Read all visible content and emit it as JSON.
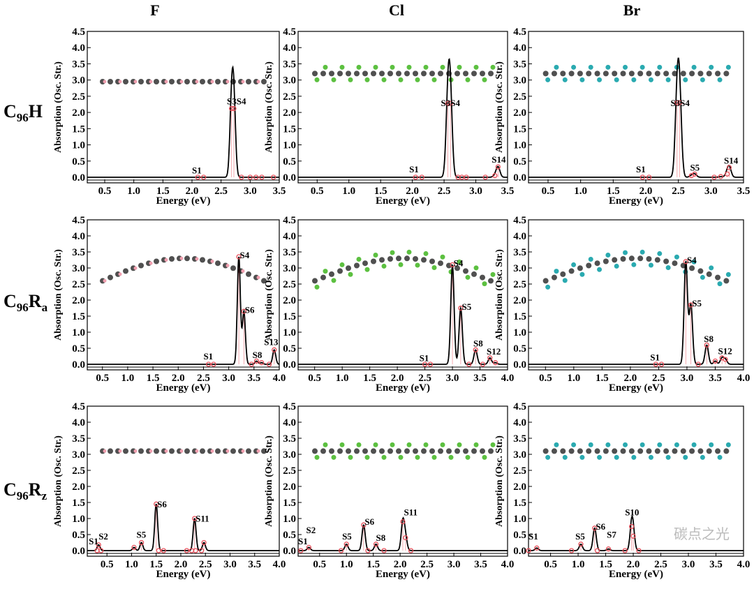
{
  "column_titles": [
    "F",
    "Cl",
    "Br"
  ],
  "row_labels": [
    [
      [
        "C",
        ""
      ],
      [
        "96",
        "sub"
      ],
      [
        "H",
        ""
      ]
    ],
    [
      [
        "C",
        ""
      ],
      [
        "96",
        "sub"
      ],
      [
        "R",
        ""
      ],
      [
        "a",
        "sub"
      ]
    ],
    [
      [
        "C",
        ""
      ],
      [
        "96",
        "sub"
      ],
      [
        "R",
        ""
      ],
      [
        "z",
        "sub"
      ]
    ]
  ],
  "colors": {
    "curve": "#000000",
    "stick": "#e8505b",
    "F": "#f0a0b0",
    "Cl": "#5cc040",
    "Br": "#2aaab0",
    "carbon": "#505050"
  },
  "watermark": "碳点之光",
  "chart_data": [
    {
      "type": "line",
      "xlabel": "Energy (eV)",
      "ylabel": "Absorption (Osc. Str.)",
      "xlim": [
        0.2,
        3.5
      ],
      "ylim": [
        0,
        4.5
      ],
      "xticks": [
        0.5,
        1.0,
        1.5,
        2.0,
        2.5,
        3.0,
        3.5
      ],
      "yticks": [
        0,
        0.5,
        1,
        1.5,
        2,
        2.5,
        3,
        3.5,
        4,
        4.5
      ],
      "molecule": "flat",
      "atom": "F",
      "sticks": [
        [
          2.1,
          0
        ],
        [
          2.2,
          0
        ],
        [
          2.68,
          2.12
        ],
        [
          2.72,
          2.12
        ],
        [
          2.85,
          0
        ],
        [
          3.0,
          0
        ],
        [
          3.1,
          0
        ],
        [
          3.2,
          0
        ],
        [
          3.4,
          0
        ]
      ],
      "labels": [
        {
          "text": "S1",
          "x": 2.0,
          "y": 0.12
        },
        {
          "text": "S3S4",
          "x": 2.6,
          "y": 2.25
        }
      ]
    },
    {
      "type": "line",
      "xlabel": "Energy (eV)",
      "ylabel": "Absorption (Osc. Str.)",
      "xlim": [
        0.2,
        3.5
      ],
      "ylim": [
        0,
        4.5
      ],
      "xticks": [
        0.5,
        1.0,
        1.5,
        2.0,
        2.5,
        3.0,
        3.5
      ],
      "yticks": [
        0,
        0.5,
        1,
        1.5,
        2,
        2.5,
        3,
        3.5,
        4,
        4.5
      ],
      "molecule": "flat",
      "atom": "Cl",
      "sticks": [
        [
          2.05,
          0
        ],
        [
          2.15,
          0
        ],
        [
          2.56,
          2.28
        ],
        [
          2.6,
          2.28
        ],
        [
          2.72,
          0
        ],
        [
          2.78,
          0
        ],
        [
          2.85,
          0
        ],
        [
          3.15,
          0
        ],
        [
          3.3,
          0.05
        ],
        [
          3.35,
          0.32
        ]
      ],
      "labels": [
        {
          "text": "S1",
          "x": 1.95,
          "y": 0.15
        },
        {
          "text": "S3S4",
          "x": 2.45,
          "y": 2.2
        },
        {
          "text": "S14",
          "x": 3.25,
          "y": 0.45
        }
      ]
    },
    {
      "type": "line",
      "xlabel": "Energy (eV)",
      "ylabel": "Absorption (Osc. Str.)",
      "xlim": [
        0.2,
        3.5
      ],
      "ylim": [
        0,
        4.5
      ],
      "xticks": [
        0.5,
        1.0,
        1.5,
        2.0,
        2.5,
        3.0,
        3.5
      ],
      "yticks": [
        0,
        0.5,
        1,
        1.5,
        2,
        2.5,
        3,
        3.5,
        4,
        4.5
      ],
      "molecule": "flat",
      "atom": "Br",
      "sticks": [
        [
          1.95,
          0
        ],
        [
          2.05,
          0
        ],
        [
          2.48,
          2.3
        ],
        [
          2.52,
          2.3
        ],
        [
          2.7,
          0.05
        ],
        [
          2.75,
          0.1
        ],
        [
          3.05,
          0
        ],
        [
          3.15,
          0.02
        ],
        [
          3.25,
          0.1
        ],
        [
          3.28,
          0.3
        ]
      ],
      "labels": [
        {
          "text": "S1",
          "x": 1.85,
          "y": 0.15
        },
        {
          "text": "S3S4",
          "x": 2.38,
          "y": 2.2
        },
        {
          "text": "S5",
          "x": 2.68,
          "y": 0.2
        },
        {
          "text": "S14",
          "x": 3.2,
          "y": 0.42
        }
      ]
    },
    {
      "type": "line",
      "xlabel": "Energy (eV)",
      "ylabel": "Absorption (Osc. Str.)",
      "xlim": [
        0.2,
        4.0
      ],
      "ylim": [
        0,
        4.5
      ],
      "xticks": [
        0.5,
        1.0,
        1.5,
        2.0,
        2.5,
        3.0,
        3.5,
        4.0
      ],
      "yticks": [
        0,
        0.5,
        1,
        1.5,
        2,
        2.5,
        3,
        3.5,
        4,
        4.5
      ],
      "molecule": "bent",
      "atom": "F",
      "sticks": [
        [
          2.6,
          0
        ],
        [
          2.7,
          0
        ],
        [
          3.2,
          3.35
        ],
        [
          3.3,
          1.65
        ],
        [
          3.45,
          0
        ],
        [
          3.55,
          0.1
        ],
        [
          3.65,
          0.05
        ],
        [
          3.8,
          0
        ],
        [
          3.9,
          0.45
        ]
      ],
      "labels": [
        {
          "text": "S1",
          "x": 2.5,
          "y": 0.15
        },
        {
          "text": "S4",
          "x": 3.22,
          "y": 3.3
        },
        {
          "text": "S6",
          "x": 3.32,
          "y": 1.6
        },
        {
          "text": "S8",
          "x": 3.47,
          "y": 0.2
        },
        {
          "text": "S13",
          "x": 3.7,
          "y": 0.6
        }
      ]
    },
    {
      "type": "line",
      "xlabel": "Energy (eV)",
      "ylabel": "Absorption (Osc. Str.)",
      "xlim": [
        0.2,
        4.0
      ],
      "ylim": [
        0,
        4.5
      ],
      "xticks": [
        0.5,
        1.0,
        1.5,
        2.0,
        2.5,
        3.0,
        3.5,
        4.0
      ],
      "yticks": [
        0,
        0.5,
        1,
        1.5,
        2,
        2.5,
        3,
        3.5,
        4,
        4.5
      ],
      "molecule": "bent",
      "atom": "Cl",
      "sticks": [
        [
          2.5,
          0
        ],
        [
          2.6,
          0
        ],
        [
          3.0,
          3.1
        ],
        [
          3.15,
          1.75
        ],
        [
          3.3,
          0
        ],
        [
          3.42,
          0.45
        ],
        [
          3.55,
          0
        ],
        [
          3.68,
          0.2
        ],
        [
          3.78,
          0.05
        ]
      ],
      "labels": [
        {
          "text": "S1",
          "x": 2.4,
          "y": 0.1
        },
        {
          "text": "S4",
          "x": 3.02,
          "y": 3.05
        },
        {
          "text": "S5",
          "x": 3.17,
          "y": 1.7
        },
        {
          "text": "S8",
          "x": 3.38,
          "y": 0.55
        },
        {
          "text": "S12",
          "x": 3.62,
          "y": 0.3
        }
      ]
    },
    {
      "type": "line",
      "xlabel": "Energy (eV)",
      "ylabel": "Absorption (Osc. Str.)",
      "xlim": [
        0.2,
        4.0
      ],
      "ylim": [
        0,
        4.5
      ],
      "xticks": [
        0.5,
        1.0,
        1.5,
        2.0,
        2.5,
        3.0,
        3.5,
        4.0
      ],
      "yticks": [
        0,
        0.5,
        1,
        1.5,
        2,
        2.5,
        3,
        3.5,
        4,
        4.5
      ],
      "molecule": "bent",
      "atom": "Br",
      "sticks": [
        [
          2.45,
          0
        ],
        [
          2.55,
          0
        ],
        [
          2.98,
          3.2
        ],
        [
          3.07,
          1.85
        ],
        [
          3.2,
          0
        ],
        [
          3.35,
          0.6
        ],
        [
          3.5,
          0.1
        ],
        [
          3.62,
          0.2
        ],
        [
          3.68,
          0.15
        ]
      ],
      "labels": [
        {
          "text": "S1",
          "x": 2.35,
          "y": 0.12
        },
        {
          "text": "S4",
          "x": 3.0,
          "y": 3.15
        },
        {
          "text": "S5",
          "x": 3.09,
          "y": 1.8
        },
        {
          "text": "S8",
          "x": 3.3,
          "y": 0.7
        },
        {
          "text": "S12",
          "x": 3.55,
          "y": 0.32
        }
      ]
    },
    {
      "type": "line",
      "xlabel": "Energy (eV)",
      "ylabel": "Absorption (Osc. Str.)",
      "xlim": [
        0.1,
        4.0
      ],
      "ylim": [
        0,
        4.5
      ],
      "xticks": [
        0.5,
        1.0,
        1.5,
        2.0,
        2.5,
        3.0,
        3.5,
        4.0
      ],
      "yticks": [
        0,
        0.5,
        1,
        1.5,
        2,
        2.5,
        3,
        3.5,
        4,
        4.5
      ],
      "molecule": "flat",
      "atom": "F",
      "sticks": [
        [
          0.3,
          0
        ],
        [
          0.33,
          0.18
        ],
        [
          0.38,
          0
        ],
        [
          1.05,
          0.1
        ],
        [
          1.2,
          0.25
        ],
        [
          1.5,
          1.45
        ],
        [
          1.55,
          0
        ],
        [
          1.65,
          0
        ],
        [
          2.12,
          0
        ],
        [
          2.22,
          0
        ],
        [
          2.28,
          1.0
        ],
        [
          2.3,
          0
        ],
        [
          2.42,
          0
        ],
        [
          2.47,
          0.25
        ]
      ],
      "labels": [
        {
          "text": "S1",
          "x": 0.13,
          "y": 0.2
        },
        {
          "text": "S2",
          "x": 0.33,
          "y": 0.35
        },
        {
          "text": "S5",
          "x": 1.1,
          "y": 0.4
        },
        {
          "text": "S6",
          "x": 1.52,
          "y": 1.35
        },
        {
          "text": "S11",
          "x": 2.3,
          "y": 0.9
        }
      ]
    },
    {
      "type": "line",
      "xlabel": "Energy (eV)",
      "ylabel": "Absorption (Osc. Str.)",
      "xlim": [
        0.1,
        4.0
      ],
      "ylim": [
        0,
        4.5
      ],
      "xticks": [
        0.5,
        1.0,
        1.5,
        2.0,
        2.5,
        3.0,
        3.5,
        4.0
      ],
      "yticks": [
        0,
        0.5,
        1,
        1.5,
        2,
        2.5,
        3,
        3.5,
        4,
        4.5
      ],
      "molecule": "flat",
      "atom": "Cl",
      "sticks": [
        [
          0.15,
          0
        ],
        [
          0.3,
          0.1
        ],
        [
          0.9,
          0
        ],
        [
          1.0,
          0.2
        ],
        [
          1.32,
          0.8
        ],
        [
          1.4,
          0
        ],
        [
          1.55,
          0.2
        ],
        [
          1.7,
          0
        ],
        [
          2.05,
          0.9
        ],
        [
          2.1,
          0.4
        ],
        [
          2.2,
          0
        ]
      ],
      "labels": [
        {
          "text": "S1",
          "x": 0.1,
          "y": 0.2
        },
        {
          "text": "S2",
          "x": 0.25,
          "y": 0.2
        },
        {
          "text": "S5",
          "x": 0.92,
          "y": 0.35
        },
        {
          "text": "S6",
          "x": 1.34,
          "y": 0.8
        },
        {
          "text": "S8",
          "x": 1.55,
          "y": 0.3
        },
        {
          "text": "S11",
          "x": 2.07,
          "y": 1.1
        }
      ]
    },
    {
      "type": "line",
      "xlabel": "Energy (eV)",
      "ylabel": "Absorption (Osc. Str.)",
      "xlim": [
        0.1,
        4.0
      ],
      "ylim": [
        0,
        4.5
      ],
      "xticks": [
        0.5,
        1.0,
        1.5,
        2.0,
        2.5,
        3.0,
        3.5,
        4.0
      ],
      "yticks": [
        0,
        0.5,
        1,
        1.5,
        2,
        2.5,
        3,
        3.5,
        4,
        4.5
      ],
      "molecule": "flat",
      "atom": "Br",
      "sticks": [
        [
          0.1,
          0
        ],
        [
          0.25,
          0.08
        ],
        [
          0.88,
          0
        ],
        [
          1.05,
          0.2
        ],
        [
          1.3,
          0.7
        ],
        [
          1.35,
          0
        ],
        [
          1.55,
          0.05
        ],
        [
          1.85,
          0
        ],
        [
          1.97,
          0.75
        ],
        [
          2.0,
          0.45
        ],
        [
          2.1,
          0
        ]
      ],
      "labels": [
        {
          "text": "S1",
          "x": 0.1,
          "y": 0.35
        },
        {
          "text": "S5",
          "x": 0.95,
          "y": 0.35
        },
        {
          "text": "S6",
          "x": 1.32,
          "y": 0.65
        },
        {
          "text": "S7",
          "x": 1.52,
          "y": 0.4
        },
        {
          "text": "S10",
          "x": 1.85,
          "y": 1.1
        }
      ]
    }
  ]
}
